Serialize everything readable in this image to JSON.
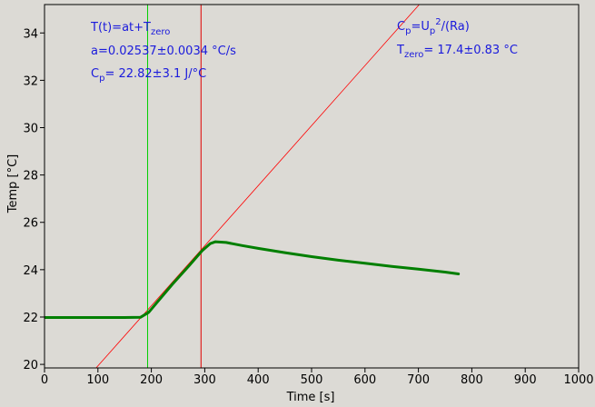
{
  "chart_data": {
    "type": "line",
    "xlabel": "Time [s]",
    "ylabel": "Temp [°C]",
    "xlim": [
      0,
      1000
    ],
    "ylim": [
      19.85,
      35.2
    ],
    "xticks": [
      0,
      100,
      200,
      300,
      400,
      500,
      600,
      700,
      800,
      900,
      1000
    ],
    "yticks": [
      20,
      22,
      24,
      26,
      28,
      30,
      32,
      34
    ],
    "grid": false,
    "series": [
      {
        "color": "#007f00",
        "x": [
          0,
          50,
          100,
          150,
          180,
          195,
          210,
          240,
          270,
          295,
          310,
          320,
          340,
          370,
          400,
          450,
          500,
          550,
          600,
          650,
          700,
          750,
          775
        ],
        "y": [
          21.98,
          21.98,
          21.98,
          21.98,
          21.99,
          22.2,
          22.6,
          23.4,
          24.15,
          24.8,
          25.1,
          25.18,
          25.15,
          25.02,
          24.9,
          24.72,
          24.55,
          24.4,
          24.27,
          24.14,
          24.02,
          23.9,
          23.82
        ]
      }
    ],
    "fit_line": {
      "color": "#ff0000",
      "slope": 0.02537,
      "intercept": 17.4
    },
    "vlines": [
      {
        "x": 193,
        "color": "#00d000"
      },
      {
        "x": 293,
        "color": "#e00000"
      }
    ],
    "annotations": {
      "fit_eq": {
        "main": "T(t)=at+T",
        "sub": "zero"
      },
      "a": "a=0.02537±0.0034 °C/s",
      "cp_value": {
        "main": "C",
        "sub": "p",
        "rest": "= 22.82±3.1 J/°C"
      },
      "cp_formula": {
        "main": "C",
        "sub": "p",
        "mid": "=U",
        "sub2": "p",
        "sup": "2",
        "rest": "/(Ra)"
      },
      "tzero": {
        "main": "T",
        "sub": "zero",
        "rest": "= 17.4±0.83 °C"
      }
    },
    "colors": {
      "text": "#1a1adc",
      "background": "#dcdad5"
    }
  }
}
